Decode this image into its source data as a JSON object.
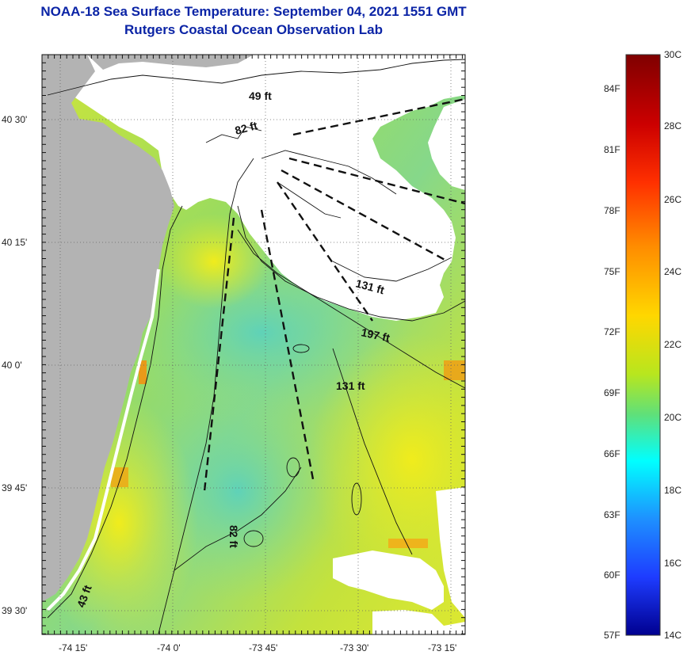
{
  "title_line1": "NOAA-18 Sea Surface Temperature:  September 04, 2021 1551 GMT",
  "title_line2": "Rutgers Coastal Ocean Observation Lab",
  "map": {
    "lon_ticks": [
      "-74 15'",
      "-74 0'",
      "-73 45'",
      "-73 30'",
      "-73 15'"
    ],
    "lat_ticks": [
      "40 30'",
      "40 15'",
      "40 0'",
      "39 45'",
      "39 30'"
    ],
    "depth_labels": [
      "49 ft",
      "82 ft",
      "131 ft",
      "197 ft",
      "131 ft",
      "82 ft",
      "43 ft"
    ],
    "land_color": "#b3b3b3",
    "cloud_color": "#ffffff"
  },
  "colorbar": {
    "fahrenheit_labels": [
      "84F",
      "81F",
      "78F",
      "75F",
      "72F",
      "69F",
      "66F",
      "63F",
      "60F",
      "57F"
    ],
    "celsius_labels": [
      "30C",
      "28C",
      "26C",
      "24C",
      "22C",
      "20C",
      "18C",
      "16C",
      "14C"
    ],
    "colors": [
      "#7f0000",
      "#ff0000",
      "#ff7f00",
      "#ffd700",
      "#a6e22e",
      "#00ffff",
      "#1e5aff",
      "#00008f"
    ]
  }
}
